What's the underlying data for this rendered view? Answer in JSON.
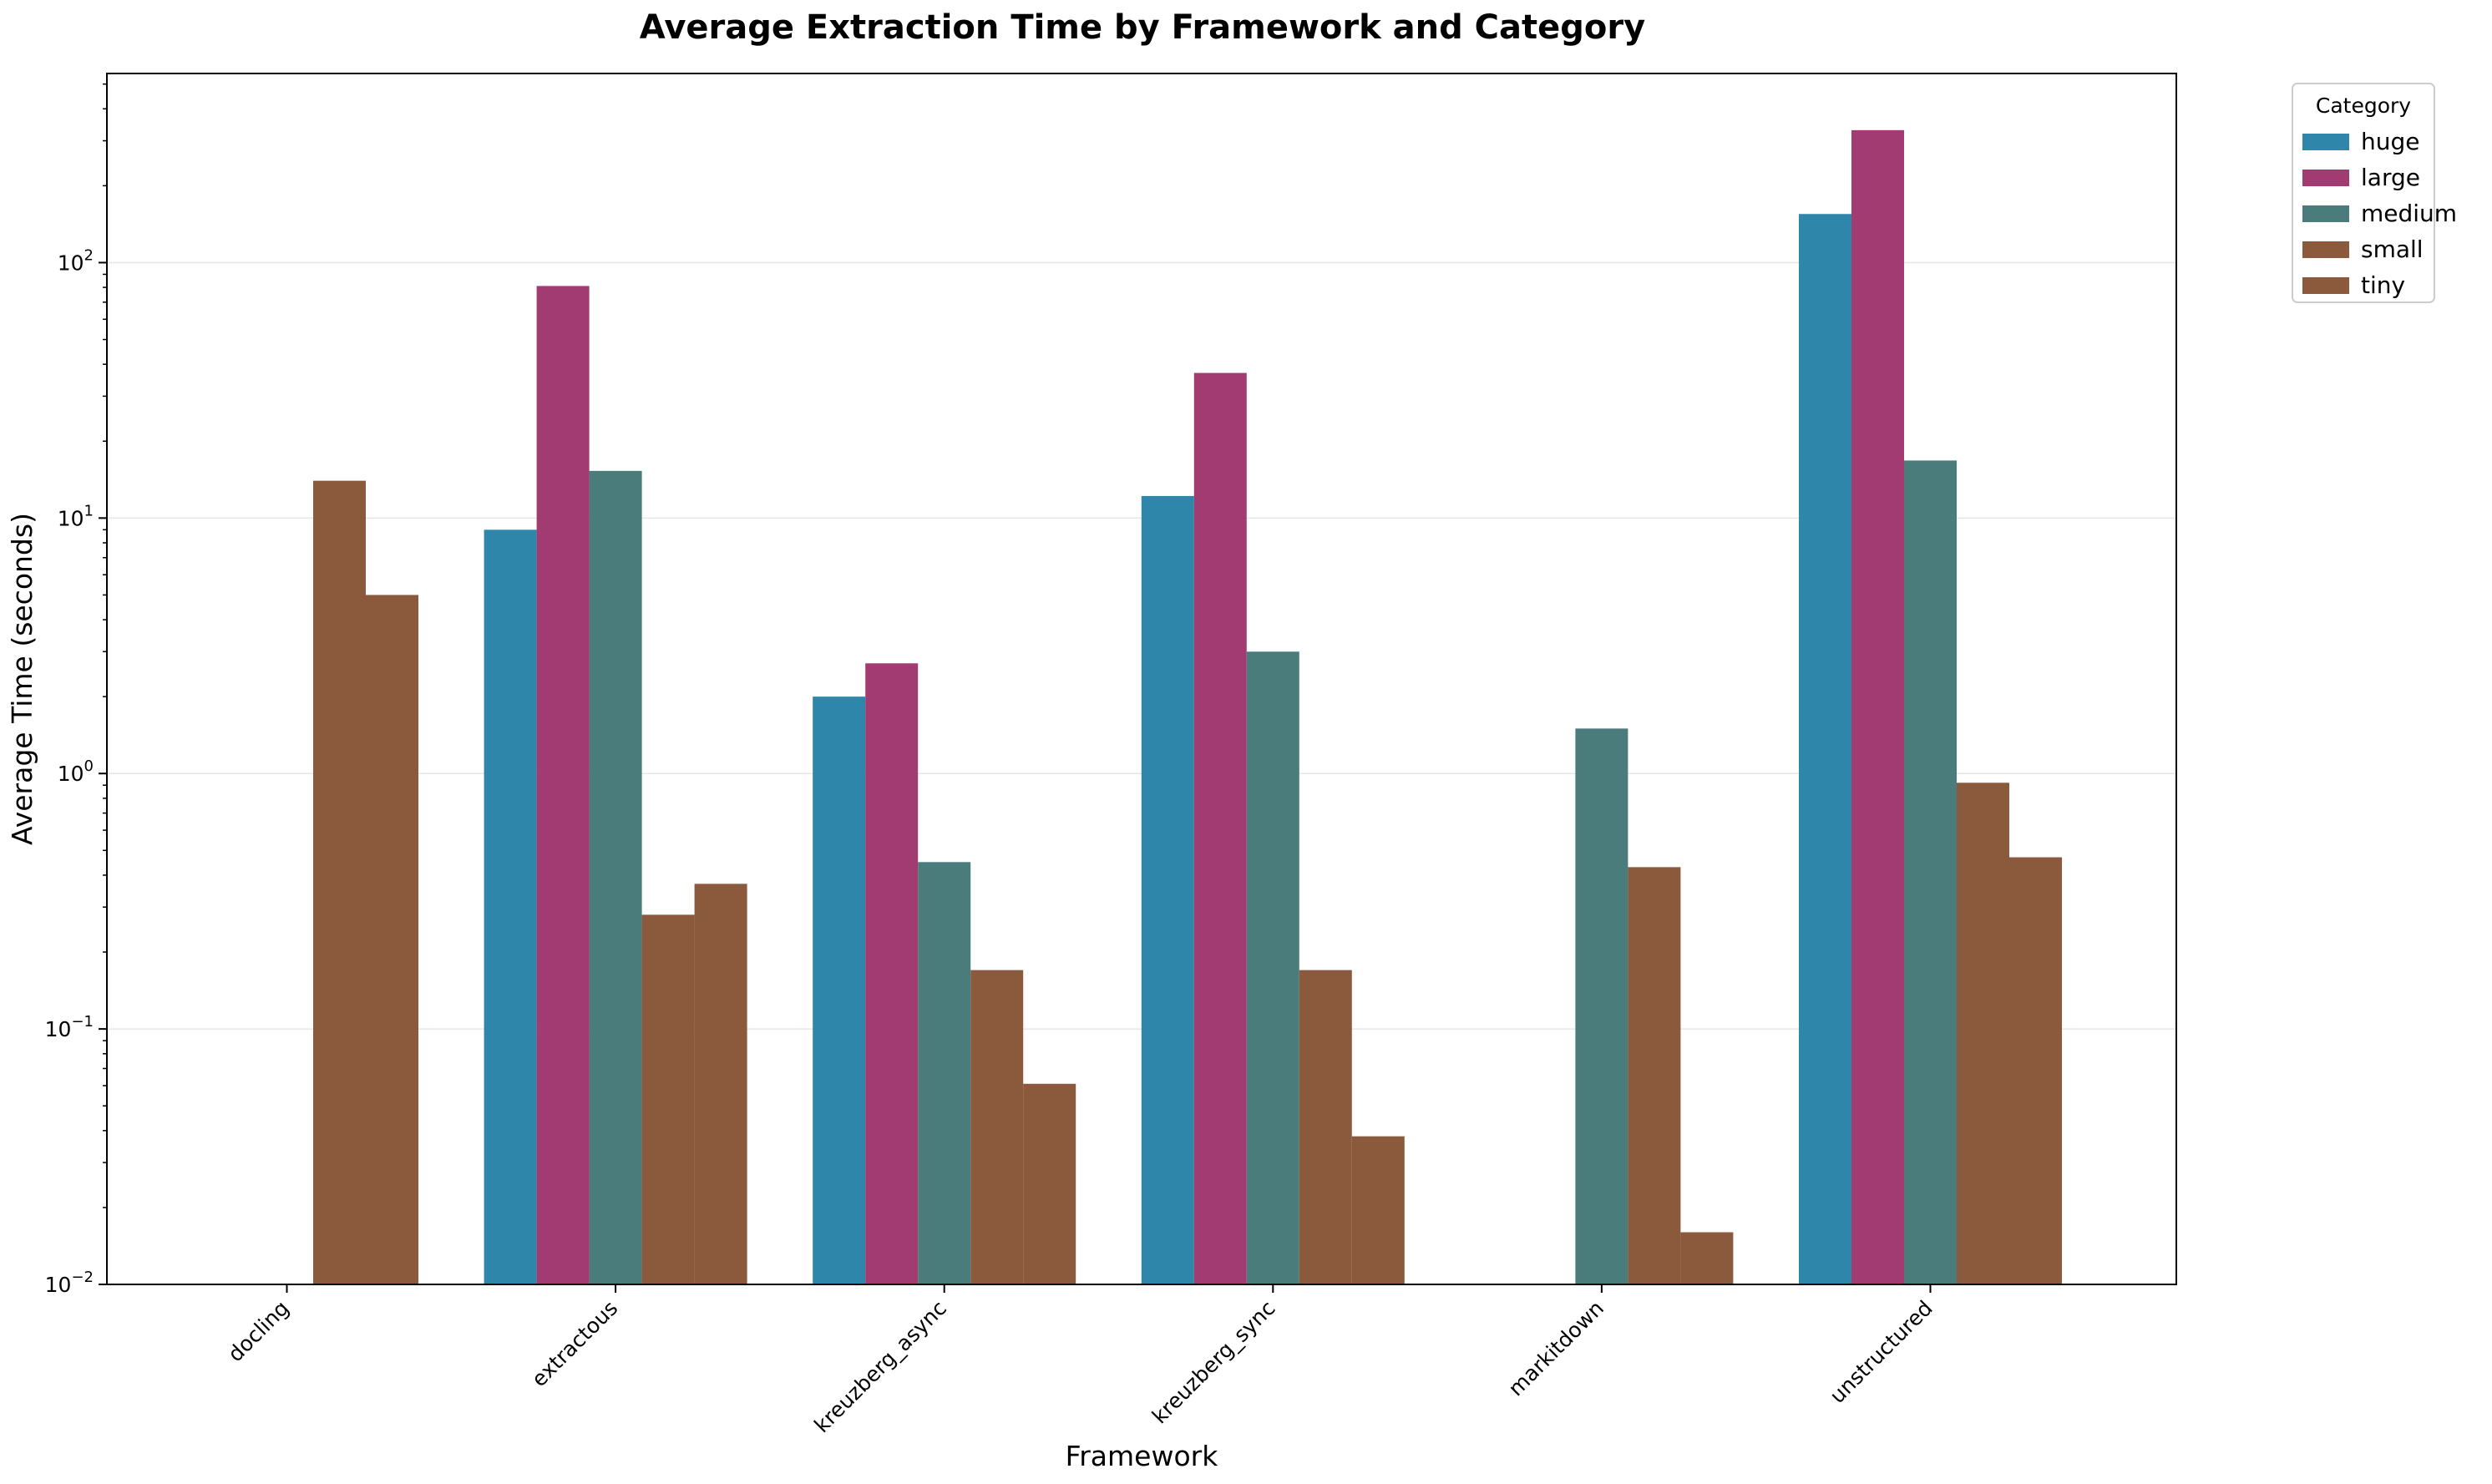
{
  "chart_data": {
    "type": "bar",
    "title": "Average Extraction Time by Framework and Category",
    "xlabel": "Framework",
    "ylabel": "Average Time (seconds)",
    "yscale": "log",
    "ylim": [
      0.01,
      550
    ],
    "y_ticks": [
      {
        "base": "10",
        "exp": "−2",
        "value": 0.01
      },
      {
        "base": "10",
        "exp": "−1",
        "value": 0.1
      },
      {
        "base": "10",
        "exp": "0",
        "value": 1
      },
      {
        "base": "10",
        "exp": "1",
        "value": 10
      },
      {
        "base": "10",
        "exp": "2",
        "value": 100
      }
    ],
    "grid": "horizontal",
    "categories": [
      "docling",
      "extractous",
      "kreuzberg_async",
      "kreuzberg_sync",
      "markitdown",
      "unstructured"
    ],
    "legend": {
      "title": "Category",
      "placement": "outside top-right"
    },
    "series": [
      {
        "name": "huge",
        "color": "#2E86AB",
        "values": [
          null,
          9.0,
          2.0,
          12.2,
          null,
          155
        ]
      },
      {
        "name": "large",
        "color": "#A23B72",
        "values": [
          null,
          81,
          2.7,
          37,
          null,
          330
        ]
      },
      {
        "name": "medium",
        "color": "#4A7C7C",
        "values": [
          null,
          15.3,
          0.45,
          3.0,
          1.5,
          16.8
        ]
      },
      {
        "name": "small",
        "color": "#8B5A3C",
        "values": [
          14.0,
          0.28,
          0.17,
          0.17,
          0.43,
          0.92
        ]
      },
      {
        "name": "tiny",
        "color": "#8B5A3C",
        "values": [
          5.0,
          0.37,
          0.061,
          0.038,
          0.016,
          0.47
        ]
      }
    ]
  }
}
